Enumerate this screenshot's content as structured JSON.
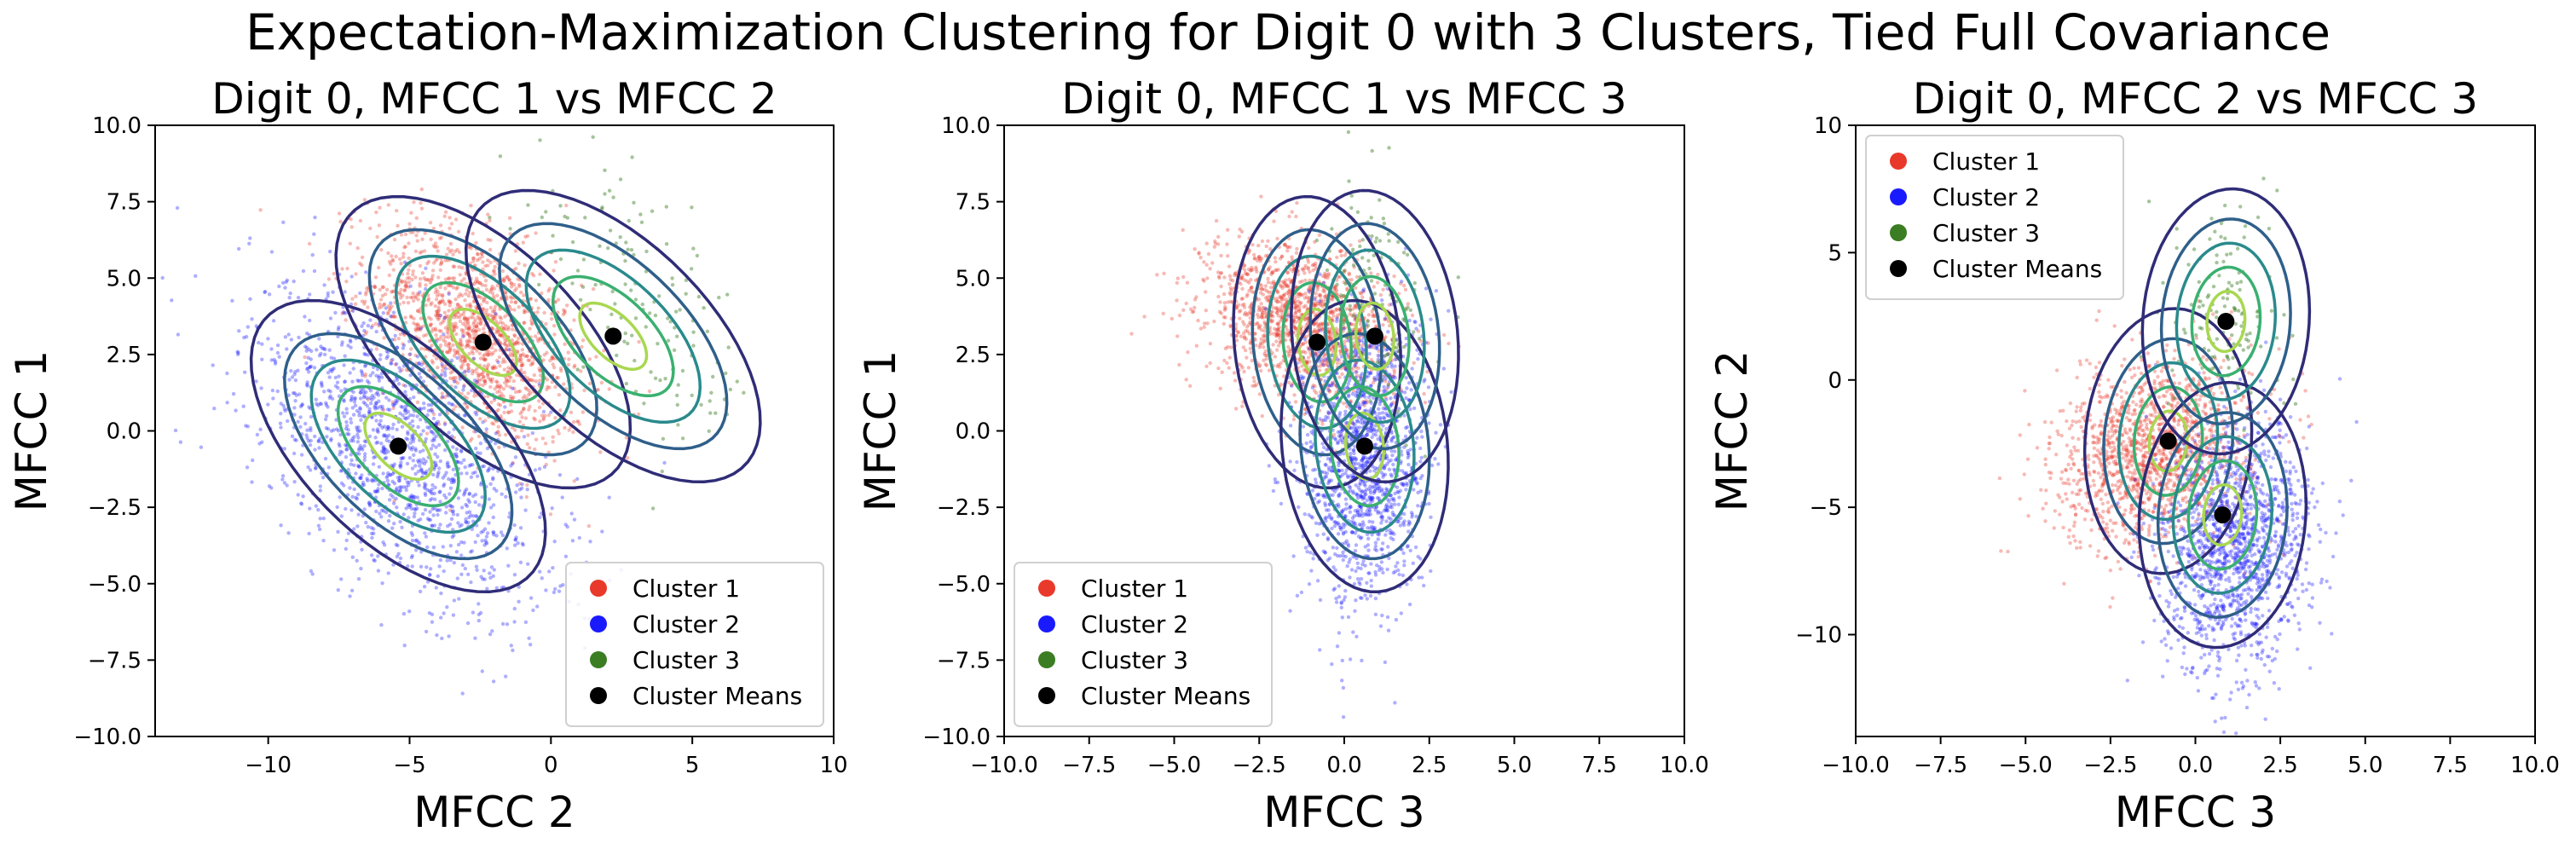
{
  "figure": {
    "suptitle": "Expectation-Maximization Clustering for Digit 0 with 3 Clusters, Tied Full Covariance"
  },
  "colors": {
    "cluster_1": "#e8392b",
    "cluster_2": "#1a1aff",
    "cluster_3": "#3a7d22",
    "means": "#000000",
    "contours": [
      "#2f2c77",
      "#2f5f8a",
      "#2a8a8c",
      "#3ab070",
      "#a8d850"
    ]
  },
  "legend_labels": [
    "Cluster 1",
    "Cluster 2",
    "Cluster 3",
    "Cluster Means"
  ],
  "chart_data": [
    {
      "type": "scatter",
      "title": "Digit 0, MFCC 1 vs MFCC 2",
      "xlabel": "MFCC 2",
      "ylabel": "MFCC 1",
      "xlim": [
        -14,
        10
      ],
      "ylim": [
        -10,
        10
      ],
      "xticks": [
        -10,
        -5,
        0,
        5,
        10
      ],
      "xtick_labels": [
        "−10",
        "−5",
        "0",
        "5",
        "10"
      ],
      "yticks": [
        -10,
        -7.5,
        -5,
        -2.5,
        0,
        2.5,
        5,
        7.5,
        10
      ],
      "ytick_labels": [
        "−10.0",
        "−7.5",
        "−5.0",
        "−2.5",
        "0.0",
        "2.5",
        "5.0",
        "7.5",
        "10.0"
      ],
      "grid": false,
      "legend": "lower-right",
      "means": [
        [
          -2.4,
          2.9
        ],
        [
          -5.4,
          -0.5
        ],
        [
          2.2,
          3.1
        ]
      ],
      "covariance": [
        [
          5.6,
          -3.0
        ],
        [
          -3.0,
          4.7
        ]
      ],
      "series": [
        {
          "name": "Cluster 1",
          "center": [
            -2.6,
            3.2
          ],
          "spread": [
            1.9,
            1.8
          ],
          "correlation": -0.45,
          "count": 1500
        },
        {
          "name": "Cluster 2",
          "center": [
            -5.4,
            -0.6
          ],
          "spread": [
            2.6,
            2.6
          ],
          "correlation": -0.55,
          "count": 1500
        },
        {
          "name": "Cluster 3",
          "center": [
            3.2,
            4.2
          ],
          "spread": [
            2.0,
            2.6
          ],
          "correlation": -0.7,
          "count": 150
        }
      ]
    },
    {
      "type": "scatter",
      "title": "Digit 0, MFCC 1 vs MFCC 3",
      "xlabel": "MFCC 3",
      "ylabel": "MFCC 1",
      "xlim": [
        -10,
        10
      ],
      "ylim": [
        -10,
        10
      ],
      "xticks": [
        -10,
        -7.5,
        -5,
        -2.5,
        0,
        2.5,
        5,
        7.5,
        10
      ],
      "xtick_labels": [
        "−10.0",
        "−7.5",
        "−5.0",
        "−2.5",
        "0.0",
        "2.5",
        "5.0",
        "7.5",
        "10.0"
      ],
      "yticks": [
        -10,
        -7.5,
        -5,
        -2.5,
        0,
        2.5,
        5,
        7.5,
        10
      ],
      "ytick_labels": [
        "−10.0",
        "−7.5",
        "−5.0",
        "−2.5",
        "0.0",
        "2.5",
        "5.0",
        "7.5",
        "10.0"
      ],
      "grid": false,
      "legend": "lower-left",
      "means": [
        [
          -0.8,
          2.9
        ],
        [
          0.6,
          -0.5
        ],
        [
          0.9,
          3.1
        ]
      ],
      "covariance": [
        [
          1.25,
          -0.3
        ],
        [
          -0.3,
          4.7
        ]
      ],
      "series": [
        {
          "name": "Cluster 1",
          "center": [
            -1.2,
            3.6
          ],
          "spread": [
            1.4,
            1.3
          ],
          "correlation": -0.3,
          "count": 1500
        },
        {
          "name": "Cluster 2",
          "center": [
            0.6,
            -0.8
          ],
          "spread": [
            0.9,
            2.4
          ],
          "correlation": 0.05,
          "count": 1500
        },
        {
          "name": "Cluster 3",
          "center": [
            0.8,
            4.0
          ],
          "spread": [
            0.8,
            2.0
          ],
          "correlation": 0.0,
          "count": 150
        }
      ]
    },
    {
      "type": "scatter",
      "title": "Digit 0, MFCC 2 vs MFCC 3",
      "xlabel": "MFCC 3",
      "ylabel": "MFCC 2",
      "xlim": [
        -10,
        10
      ],
      "ylim": [
        -14,
        10
      ],
      "xticks": [
        -10,
        -7.5,
        -5,
        -2.5,
        0,
        2.5,
        5,
        7.5,
        10
      ],
      "xtick_labels": [
        "−10.0",
        "−7.5",
        "−5.0",
        "−2.5",
        "0.0",
        "2.5",
        "5.0",
        "7.5",
        "10.0"
      ],
      "yticks": [
        -10,
        -5,
        0,
        5,
        10
      ],
      "ytick_labels": [
        "−10",
        "−5",
        "0",
        "5",
        "10"
      ],
      "grid": false,
      "legend": "upper-left",
      "means": [
        [
          -0.8,
          -2.4
        ],
        [
          0.8,
          -5.3
        ],
        [
          0.9,
          2.3
        ]
      ],
      "covariance": [
        [
          1.25,
          0.2
        ],
        [
          0.2,
          5.6
        ]
      ],
      "series": [
        {
          "name": "Cluster 1",
          "center": [
            -1.2,
            -2.8
          ],
          "spread": [
            1.4,
            1.8
          ],
          "correlation": 0.2,
          "count": 1500
        },
        {
          "name": "Cluster 2",
          "center": [
            1.2,
            -6.5
          ],
          "spread": [
            1.1,
            2.4
          ],
          "correlation": 0.1,
          "count": 1500
        },
        {
          "name": "Cluster 3",
          "center": [
            0.9,
            2.4
          ],
          "spread": [
            0.8,
            2.3
          ],
          "correlation": 0.0,
          "count": 150
        }
      ]
    }
  ]
}
